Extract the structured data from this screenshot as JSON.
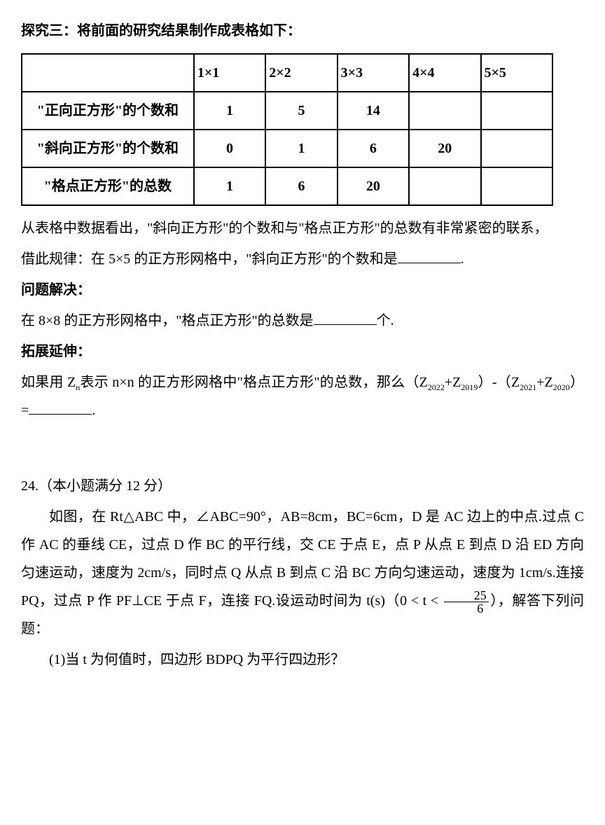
{
  "exploration3": {
    "title": "探究三：将前面的研究结果制作成表格如下：",
    "table": {
      "columns": [
        "",
        "1×1",
        "2×2",
        "3×3",
        "4×4",
        "5×5"
      ],
      "rows": [
        {
          "label": "\"正向正方形\"的个数和",
          "cells": [
            "1",
            "5",
            "14",
            "",
            ""
          ]
        },
        {
          "label": "\"斜向正方形\"的个数和",
          "cells": [
            "0",
            "1",
            "6",
            "20",
            ""
          ]
        },
        {
          "label": "\"格点正方形\"的总数",
          "cells": [
            "1",
            "6",
            "20",
            "",
            ""
          ]
        }
      ]
    },
    "observation1": "从表格中数据看出，\"斜向正方形\"的个数和与\"格点正方形\"的总数有非常紧密的联系，",
    "observation2_pre": "借此规律：在 5×5 的正方形网格中，\"斜向正方形\"的个数和是",
    "observation2_post": "."
  },
  "problemSolve": {
    "heading": "问题解决：",
    "text_pre": "在 8×8 的正方形网格中，\"格点正方形\"的总数是",
    "text_post": "个."
  },
  "extension": {
    "heading": "拓展延伸：",
    "text_pre": "如果用 Z",
    "sub_n": "n",
    "text_mid1": "表示 n×n 的正方形网格中\"格点正方形\"的总数，那么（Z",
    "sub_2022": "2022",
    "text_mid2": "+Z",
    "sub_2019": "2019",
    "text_mid3": "）-（Z",
    "sub_2021": "2021",
    "text_mid4": "+Z",
    "sub_2020": "2020",
    "text_mid5": "）=",
    "text_post": "."
  },
  "q24": {
    "heading": "24.（本小题满分 12 分）",
    "body1": "如图，在 Rt△ABC 中，∠ABC=90°，AB=8cm，BC=6cm，D 是 AC 边上的中点.过点 C 作 AC 的垂线 CE，过点 D 作 BC 的平行线，交 CE 于点 E，点 P 从点 E 到点 D 沿 ED 方向匀速运动，速度为 2cm/s，同时点 Q 从点 B 到点 C 沿 BC 方向匀速运动，速度为 1cm/s.连接 PQ，过点 P 作 PF⊥CE 于点 F，连接 FQ.设运动时间为 t(s)（0 < t < ",
    "frac_num": "25",
    "frac_den": "6",
    "body2": "），解答下列问题：",
    "sub1": "(1)当 t 为何值时，四边形 BDPQ 为平行四边形？"
  }
}
